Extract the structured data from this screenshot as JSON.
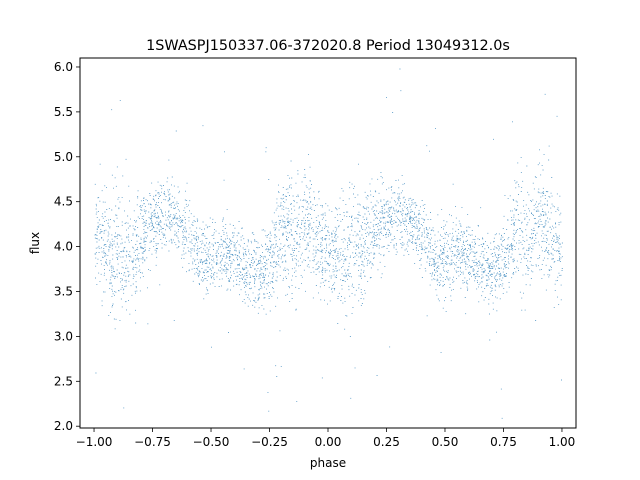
{
  "chart_data": {
    "type": "scatter",
    "title": "1SWASPJ150337.06-372020.8 Period 13049312.0s",
    "xlabel": "phase",
    "ylabel": "flux",
    "xlim": [
      -1.06,
      1.06
    ],
    "ylim": [
      1.98,
      6.1
    ],
    "x_ticks": [
      -1.0,
      -0.75,
      -0.5,
      -0.25,
      0.0,
      0.25,
      0.5,
      0.75,
      1.0
    ],
    "x_tick_labels": [
      "−1.00",
      "−0.75",
      "−0.50",
      "−0.25",
      "0.00",
      "0.25",
      "0.50",
      "0.75",
      "1.00"
    ],
    "y_ticks": [
      2.0,
      2.5,
      3.0,
      3.5,
      4.0,
      4.5,
      5.0,
      5.5,
      6.0
    ],
    "y_tick_labels": [
      "2.0",
      "2.5",
      "3.0",
      "3.5",
      "4.0",
      "4.5",
      "5.0",
      "5.5",
      "6.0"
    ],
    "grid": false,
    "legend": "none",
    "point_color": "#1f77b4",
    "series": [
      {
        "x": [
          -1.0,
          -0.95,
          -0.9,
          -0.85,
          -0.8,
          -0.75,
          -0.7,
          -0.65,
          -0.6,
          -0.55,
          -0.5,
          -0.45,
          -0.4,
          -0.35,
          -0.3,
          -0.25,
          -0.2,
          -0.15,
          -0.1,
          -0.05,
          0.0,
          0.05,
          0.1,
          0.15,
          0.2,
          0.25,
          0.3,
          0.35,
          0.4,
          0.45,
          0.5,
          0.55,
          0.6,
          0.65,
          0.7,
          0.75,
          0.8,
          0.85,
          0.9,
          0.95,
          1.0
        ],
        "y": [
          4.2,
          3.9,
          3.95,
          3.9,
          4.05,
          4.3,
          4.35,
          4.3,
          4.1,
          3.9,
          3.85,
          3.95,
          3.9,
          3.75,
          3.7,
          3.8,
          4.2,
          4.1,
          4.3,
          4.1,
          3.9,
          3.95,
          3.9,
          4.05,
          4.2,
          4.3,
          4.35,
          4.3,
          4.1,
          3.9,
          3.85,
          3.95,
          3.9,
          3.75,
          3.7,
          3.8,
          4.2,
          4.1,
          4.3,
          4.1,
          3.9
        ],
        "spread": [
          0.45,
          0.6,
          0.65,
          0.55,
          0.45,
          0.35,
          0.35,
          0.3,
          0.35,
          0.35,
          0.4,
          0.35,
          0.35,
          0.35,
          0.35,
          0.4,
          0.55,
          0.6,
          0.6,
          0.55,
          0.45,
          0.6,
          0.65,
          0.55,
          0.45,
          0.35,
          0.35,
          0.3,
          0.35,
          0.35,
          0.4,
          0.35,
          0.35,
          0.35,
          0.35,
          0.4,
          0.55,
          0.6,
          0.6,
          0.55,
          0.45
        ]
      }
    ]
  }
}
